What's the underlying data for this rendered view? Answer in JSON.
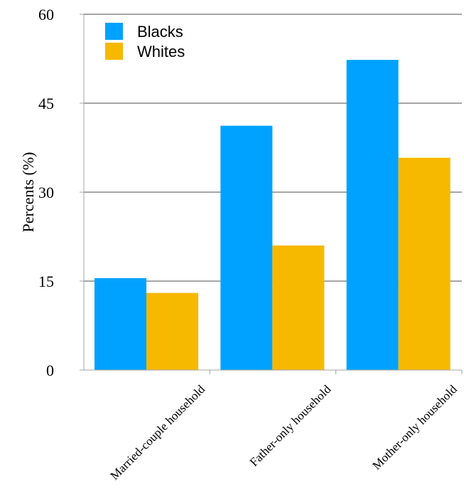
{
  "chart_data": {
    "type": "bar",
    "categories": [
      "Married-couple household",
      "Father-only household",
      "Mother-only household"
    ],
    "series": [
      {
        "name": "Blacks",
        "values": [
          15.5,
          41.2,
          52.3
        ],
        "color": "#00a2ff"
      },
      {
        "name": "Whites",
        "values": [
          13.0,
          21.0,
          35.8
        ],
        "color": "#f7b800"
      }
    ],
    "ylabel": "Percents (%)",
    "ylim": [
      0,
      60
    ],
    "yticks": [
      0,
      15,
      30,
      45,
      60
    ],
    "grid": true,
    "legend": "top-left"
  }
}
